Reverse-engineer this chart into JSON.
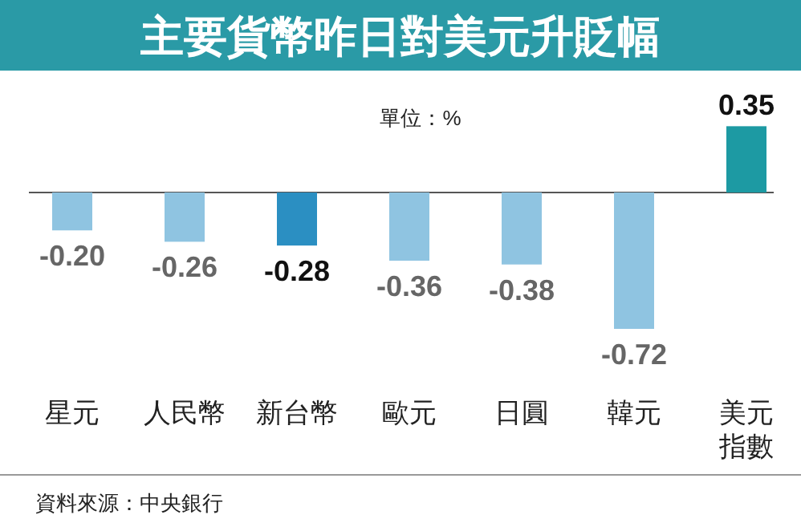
{
  "chart_data": {
    "type": "bar",
    "title": "主要貨幣昨日對美元升貶幅",
    "subtitle": "單位：%",
    "categories": [
      "星元",
      "人民幣",
      "新台幣",
      "歐元",
      "日圓",
      "韓元",
      "美元指數"
    ],
    "values": [
      -0.2,
      -0.26,
      -0.28,
      -0.36,
      -0.38,
      -0.72,
      0.35
    ],
    "colors": [
      "#8fc4e1",
      "#8fc4e1",
      "#2b8fc2",
      "#8fc4e1",
      "#8fc4e1",
      "#8fc4e1",
      "#1d9aa3"
    ],
    "value_labels": [
      "-0.20",
      "-0.26",
      "-0.28",
      "-0.36",
      "-0.38",
      "-0.72",
      "0.35"
    ],
    "annotations": [
      "資料來源：中央銀行"
    ]
  }
}
